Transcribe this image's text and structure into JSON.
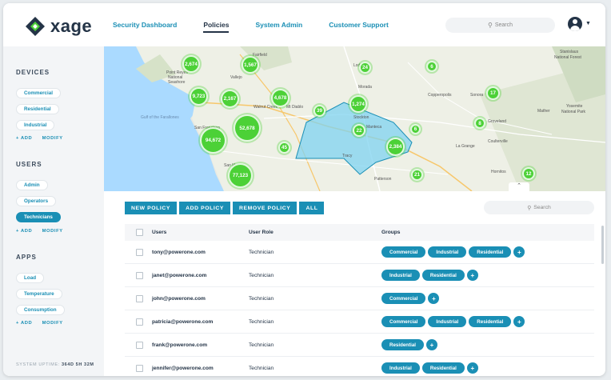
{
  "brand": {
    "name": "xage"
  },
  "nav": {
    "items": [
      {
        "label": "Security Dashboard",
        "active": false
      },
      {
        "label": "Policies",
        "active": true
      },
      {
        "label": "System Admin",
        "active": false
      },
      {
        "label": "Customer Support",
        "active": false
      }
    ],
    "search_placeholder": "Search"
  },
  "sidebar": {
    "devices": {
      "heading": "DEVICES",
      "items": [
        "Commercial",
        "Residential",
        "Industrial"
      ],
      "add": "+ ADD",
      "modify": "MODIFY"
    },
    "users": {
      "heading": "USERS",
      "items": [
        "Admin",
        "Operators",
        "Technicians"
      ],
      "active": "Technicians",
      "add": "+ ADD",
      "modify": "MODIFY"
    },
    "apps": {
      "heading": "APPS",
      "items": [
        "Load",
        "Temperature",
        "Consumption"
      ],
      "add": "+ ADD",
      "modify": "MODIFY"
    },
    "uptime_label": "SYSTEM UPTIME:",
    "uptime_value": "364D 5H 32M"
  },
  "map": {
    "place_labels": [
      "Fairfield",
      "Vallejo",
      "Point Reyes National Seashore",
      "Walnut Creek",
      "Mt Diablo",
      "San Francisco",
      "Stockton",
      "Lodi",
      "Morada",
      "Manteca",
      "Tracy",
      "Copperopolis",
      "Sonora",
      "Groveland",
      "Mather",
      "Yosemite National Park",
      "La Grange",
      "Coulterville",
      "Patterson",
      "Hornitos",
      "San Mateo",
      "Stanislaus National Forest",
      "Gulf of the Farallones"
    ],
    "clusters": [
      "2,674",
      "1,567",
      "24",
      "6",
      "9,723",
      "2,167",
      "4,678",
      "39",
      "1,274",
      "17",
      "52,678",
      "22",
      "6",
      "8",
      "94,672",
      "45",
      "2,384",
      "77,123",
      "21",
      "12"
    ],
    "toggle_icon": "chevron-up-icon"
  },
  "toolbar": {
    "buttons": [
      "NEW POLICY",
      "ADD POLICY",
      "REMOVE POLICY",
      "ALL"
    ],
    "search_placeholder": "Search"
  },
  "table": {
    "columns": [
      "Users",
      "User Role",
      "Groups"
    ],
    "rows": [
      {
        "user": "tony@powerone.com",
        "role": "Technician",
        "groups": [
          "Commercial",
          "Industrial",
          "Residential"
        ]
      },
      {
        "user": "janet@powerone.com",
        "role": "Technician",
        "groups": [
          "Industrial",
          "Residential"
        ]
      },
      {
        "user": "john@powerone.com",
        "role": "Technician",
        "groups": [
          "Commercial"
        ]
      },
      {
        "user": "patricia@powerone.com",
        "role": "Technician",
        "groups": [
          "Commercial",
          "Industrial",
          "Residential"
        ]
      },
      {
        "user": "frank@powerone.com",
        "role": "Technician",
        "groups": [
          "Residential"
        ]
      },
      {
        "user": "jennifer@powerone.com",
        "role": "Technician",
        "groups": [
          "Industrial",
          "Residential"
        ]
      }
    ],
    "add_group_symbol": "+"
  },
  "colors": {
    "accent": "#1a8fb5",
    "dark": "#243447",
    "cluster": "#4cd137",
    "region": "#7fd3f0"
  }
}
